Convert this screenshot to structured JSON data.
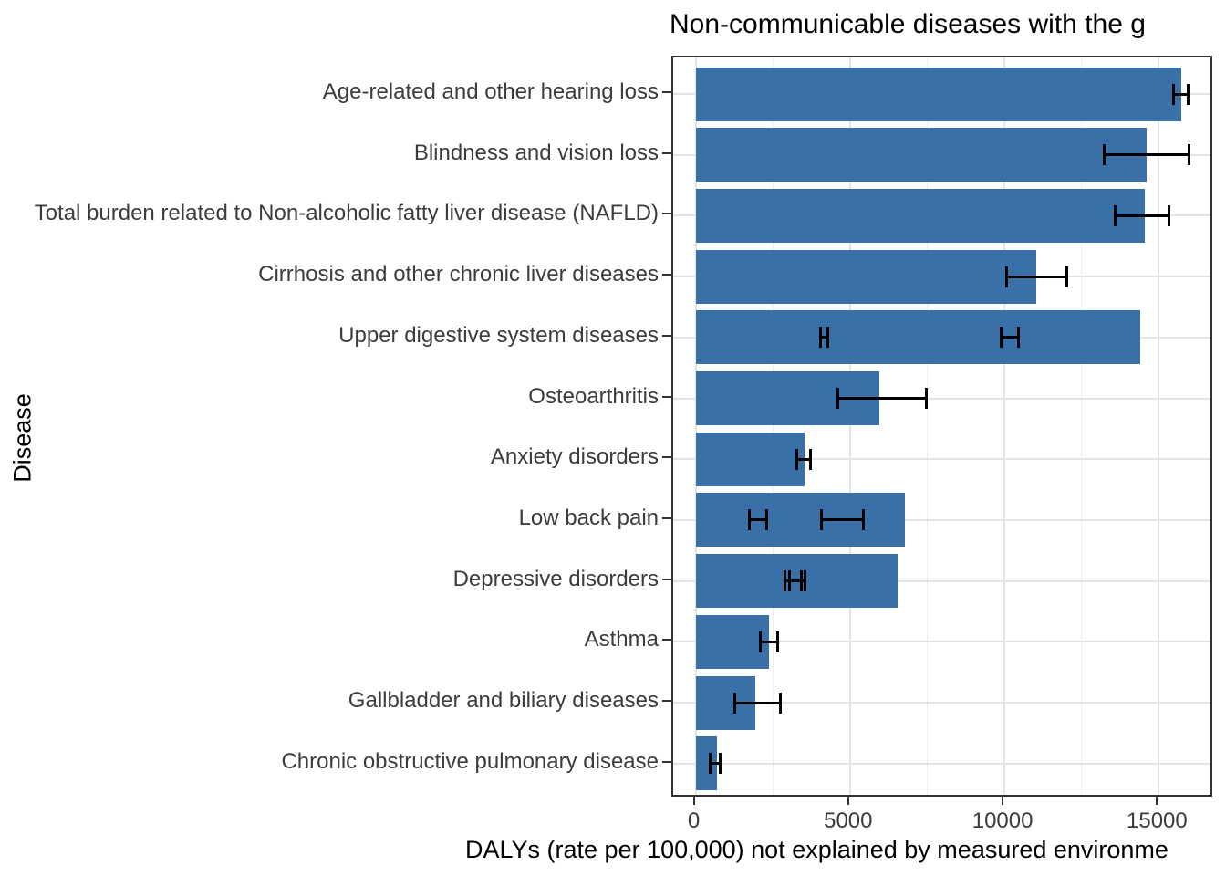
{
  "title": "Non-communicable diseases with the g",
  "x_axis_label": "DALYs (rate per 100,000) not explained by measured environme",
  "y_axis_label": "Disease",
  "colors": {
    "bar_fill": "#3a70a8",
    "errorbar": "#000000",
    "grid_major": "#e4e4e4",
    "grid_minor": "#efefef",
    "panel_border": "#333333",
    "axis_text": "#3c3c3c",
    "title_text": "#000000"
  },
  "chart_data": {
    "type": "bar",
    "orientation": "horizontal",
    "title": "Non-communicable diseases with the g",
    "xlabel": "DALYs (rate per 100,000) not explained by measured environme",
    "ylabel": "Disease",
    "legend": false,
    "grid": true,
    "xlim": [
      -700,
      16800
    ],
    "x_major_ticks": [
      0,
      5000,
      10000,
      15000
    ],
    "x_minor_gridlines": [
      2500,
      7500,
      12500
    ],
    "categories": [
      "Age-related and other hearing loss",
      "Blindness and vision loss",
      "Total burden related to Non-alcoholic fatty liver disease (NAFLD)",
      "Cirrhosis and other chronic liver diseases",
      "Upper digestive system diseases",
      "Osteoarthritis",
      "Anxiety disorders",
      "Low back pain",
      "Depressive disorders",
      "Asthma",
      "Gallbladder and biliary diseases",
      "Chronic obstructive pulmonary disease"
    ],
    "values": [
      15730,
      14600,
      14540,
      11040,
      14400,
      5940,
      3540,
      6790,
      6550,
      2370,
      1920,
      680
    ],
    "error_bars": [
      [
        [
          15470,
          15960
        ]
      ],
      [
        [
          13240,
          15990
        ]
      ],
      [
        [
          13600,
          15330
        ]
      ],
      [
        [
          10080,
          12010
        ]
      ],
      [
        [
          4040,
          4280
        ],
        [
          9880,
          10450
        ]
      ],
      [
        [
          4620,
          7480
        ]
      ],
      [
        [
          3290,
          3730
        ]
      ],
      [
        [
          1750,
          2310
        ],
        [
          4090,
          5430
        ]
      ],
      [
        [
          2890,
          3420
        ],
        [
          3030,
          3540
        ]
      ],
      [
        [
          2110,
          2670
        ]
      ],
      [
        [
          1280,
          2750
        ]
      ],
      [
        [
          480,
          800
        ]
      ]
    ]
  }
}
